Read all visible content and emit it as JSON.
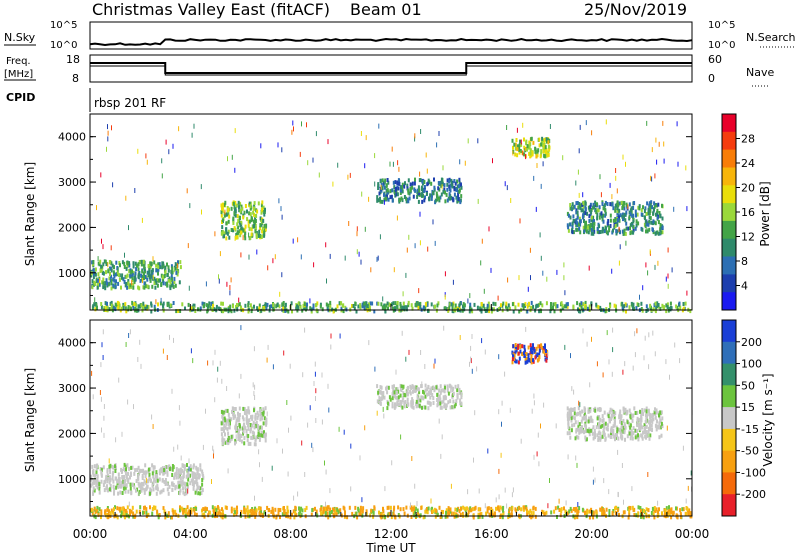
{
  "header": {
    "title": "Christmas Valley East (fitACF)",
    "beam": "Beam 01",
    "date": "25/Nov/2019"
  },
  "top_panels": {
    "nsky_label": "N.Sky",
    "nsearch_label": "N.Search",
    "nsky_ticks": [
      "10^5",
      "10^0"
    ],
    "nsearch_ticks": [
      "10^5",
      "10^0"
    ],
    "freq_label": "Freq.",
    "freq_unit": "[MHz]",
    "freq_ticks": [
      "18",
      "8"
    ],
    "nave_label": "Nave",
    "nave_ticks": [
      "60",
      "0"
    ],
    "cpid_label": "CPID",
    "cpid_value": "rbsp 201 RF"
  },
  "chart_data": [
    {
      "type": "heatmap",
      "name": "power-panel",
      "xlabel": "",
      "ylabel": "Slant Range [km]",
      "colorbar_label": "Power [dB]",
      "colorbar_ticks": [
        "28",
        "24",
        "20",
        "16",
        "12",
        "8",
        "4"
      ],
      "colorbar_colors": [
        "#e8002a",
        "#f53c0e",
        "#f87d08",
        "#f7b50a",
        "#e9de0a",
        "#9ad83a",
        "#43a447",
        "#2f8a6b",
        "#2c6fb3",
        "#1d3fae",
        "#1a1af0"
      ],
      "y_ticks": [
        "4000",
        "3000",
        "2000",
        "1000"
      ],
      "ylim": [
        180,
        4500
      ],
      "xlim": [
        0,
        24
      ],
      "regions": [
        {
          "t0": 0.0,
          "t1": 3.6,
          "r0": 700,
          "r1": 1300,
          "level": 0.35
        },
        {
          "t0": 5.2,
          "t1": 7.0,
          "r0": 1800,
          "r1": 2600,
          "level": 0.45
        },
        {
          "t0": 11.4,
          "t1": 14.8,
          "r0": 2600,
          "r1": 3100,
          "level": 0.25
        },
        {
          "t0": 16.8,
          "t1": 18.3,
          "r0": 3600,
          "r1": 4000,
          "level": 0.5
        },
        {
          "t0": 19.0,
          "t1": 22.8,
          "r0": 1900,
          "r1": 2600,
          "level": 0.3
        },
        {
          "t0": 0.0,
          "t1": 24.0,
          "r0": 190,
          "r1": 380,
          "level": 0.4
        }
      ]
    },
    {
      "type": "heatmap",
      "name": "velocity-panel",
      "xlabel": "Time UT",
      "ylabel": "Slant Range [km]",
      "colorbar_label": "Velocity [m s⁻¹]",
      "colorbar_ticks": [
        "200",
        "100",
        "50",
        "15",
        "-15",
        "-50",
        "-100",
        "-200"
      ],
      "colorbar_colors": [
        "#1a3fd6",
        "#2f6fb9",
        "#34906b",
        "#6cc43e",
        "#c8c8c8",
        "#f5c518",
        "#f7a010",
        "#f56a0a",
        "#e8202a"
      ],
      "y_ticks": [
        "4000",
        "3000",
        "2000",
        "1000"
      ],
      "x_ticks": [
        "00:00",
        "04:00",
        "08:00",
        "12:00",
        "16:00",
        "20:00",
        "00:00"
      ],
      "ylim": [
        180,
        4500
      ],
      "xlim": [
        0,
        24
      ],
      "regions": [
        {
          "t0": 0.0,
          "t1": 4.5,
          "r0": 700,
          "r1": 1350,
          "vel": 0
        },
        {
          "t0": 5.2,
          "t1": 7.0,
          "r0": 1800,
          "r1": 2600,
          "vel": 0
        },
        {
          "t0": 11.4,
          "t1": 14.8,
          "r0": 2600,
          "r1": 3100,
          "vel": 0
        },
        {
          "t0": 16.8,
          "t1": 18.3,
          "r0": 3600,
          "r1": 4000,
          "vel": 120
        },
        {
          "t0": 19.0,
          "t1": 22.8,
          "r0": 1900,
          "r1": 2600,
          "vel": 0
        },
        {
          "t0": 0.0,
          "t1": 24.0,
          "r0": 190,
          "r1": 420,
          "vel": -40
        }
      ]
    }
  ]
}
